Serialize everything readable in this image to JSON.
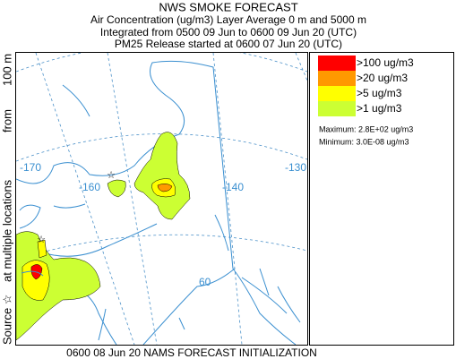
{
  "header": {
    "title": "NWS SMOKE FORECAST",
    "lines": [
      "Air Concentration (ug/m3) Layer Average    0 m and  5000 m",
      "Integrated from 0500 09 Jun to 0600 09 Jun 20 (UTC)",
      "PM25 Release started at 0600 07 Jun 20 (UTC)"
    ]
  },
  "side_label": [
    "Source ☆",
    "at multiple locations",
    "from",
    "100 m"
  ],
  "map": {
    "labels": [
      "-170",
      "-160",
      "-140",
      "-130",
      "60"
    ]
  },
  "legend": {
    "items": [
      {
        "label": ">100 ug/m3",
        "color": "#ff0000"
      },
      {
        "label": ">20 ug/m3",
        "color": "#ff9900"
      },
      {
        "label": ">5 ug/m3",
        "color": "#ffff00"
      },
      {
        "label": ">1 ug/m3",
        "color": "#ccff33"
      }
    ],
    "maximum": "Maximum: 2.8E+02 ug/m3",
    "minimum": "Minimum: 3.0E-08 ug/m3"
  },
  "footer": "0600 08 Jun 20 NAMS FORECAST INITIALIZATION"
}
